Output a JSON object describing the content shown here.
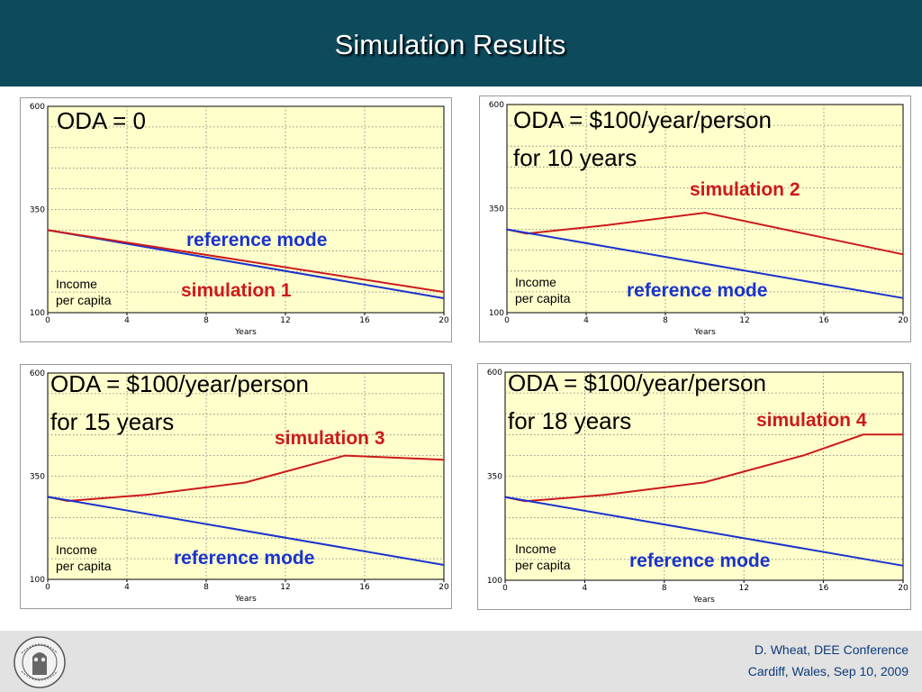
{
  "slide": {
    "title": "Simulation Results",
    "footer": {
      "author": "D. Wheat, DEE Conference",
      "event": "Cardiff, Wales, Sep 10, 2009",
      "logo_text": "UNIVERSITAS BERGENSIS"
    }
  },
  "colors": {
    "header": "#0d4a5c",
    "plot_background": "#ffffcc",
    "reference_line": "#1a33cc",
    "simulation_line": "#cc1a1a",
    "footer_text": "#0d3a7a"
  },
  "chart_data": [
    {
      "type": "line",
      "title_lines": [
        "ODA = 0"
      ],
      "variable_label": [
        "Income",
        "per capita"
      ],
      "xlabel": "Years",
      "xlim": [
        0,
        20
      ],
      "ylim": [
        100,
        600
      ],
      "xticks": [
        0,
        4,
        8,
        12,
        16,
        20
      ],
      "yticks": [
        100,
        350,
        600
      ],
      "grid": true,
      "series": [
        {
          "name": "reference mode",
          "color": "#1a33cc",
          "x": [
            0,
            20
          ],
          "y": [
            300,
            135
          ]
        },
        {
          "name": "simulation 1",
          "color": "#cc1a1a",
          "x": [
            0,
            20
          ],
          "y": [
            300,
            150
          ]
        }
      ]
    },
    {
      "type": "line",
      "title_lines": [
        "ODA = $100/year/person",
        "for 10 years"
      ],
      "variable_label": [
        "Income",
        "per capita"
      ],
      "xlabel": "Years",
      "xlim": [
        0,
        20
      ],
      "ylim": [
        100,
        600
      ],
      "xticks": [
        0,
        4,
        8,
        12,
        16,
        20
      ],
      "yticks": [
        100,
        350,
        600
      ],
      "grid": true,
      "series": [
        {
          "name": "simulation 2",
          "color": "#cc1a1a",
          "x": [
            0,
            1,
            5,
            10,
            15,
            20
          ],
          "y": [
            300,
            290,
            310,
            340,
            290,
            240
          ]
        },
        {
          "name": "reference mode",
          "color": "#1a33cc",
          "x": [
            0,
            20
          ],
          "y": [
            300,
            135
          ]
        }
      ]
    },
    {
      "type": "line",
      "title_lines": [
        "ODA = $100/year/person",
        "for 15 years"
      ],
      "variable_label": [
        "Income",
        "per capita"
      ],
      "xlabel": "Years",
      "xlim": [
        0,
        20
      ],
      "ylim": [
        100,
        600
      ],
      "xticks": [
        0,
        4,
        8,
        12,
        16,
        20
      ],
      "yticks": [
        100,
        350,
        600
      ],
      "grid": true,
      "series": [
        {
          "name": "simulation 3",
          "color": "#cc1a1a",
          "x": [
            0,
            1,
            5,
            10,
            15,
            20
          ],
          "y": [
            300,
            290,
            305,
            335,
            400,
            390
          ]
        },
        {
          "name": "reference mode",
          "color": "#1a33cc",
          "x": [
            0,
            20
          ],
          "y": [
            300,
            135
          ]
        }
      ]
    },
    {
      "type": "line",
      "title_lines": [
        "ODA = $100/year/person",
        "for 18 years"
      ],
      "variable_label": [
        "Income",
        "per capita"
      ],
      "xlabel": "Years",
      "xlim": [
        0,
        20
      ],
      "ylim": [
        100,
        600
      ],
      "xticks": [
        0,
        4,
        8,
        12,
        16,
        20
      ],
      "yticks": [
        100,
        350,
        600
      ],
      "grid": true,
      "series": [
        {
          "name": "simulation 4",
          "color": "#cc1a1a",
          "x": [
            0,
            1,
            5,
            10,
            15,
            18,
            20
          ],
          "y": [
            300,
            290,
            305,
            335,
            400,
            450,
            450
          ]
        },
        {
          "name": "reference mode",
          "color": "#1a33cc",
          "x": [
            0,
            20
          ],
          "y": [
            300,
            135
          ]
        }
      ]
    }
  ]
}
